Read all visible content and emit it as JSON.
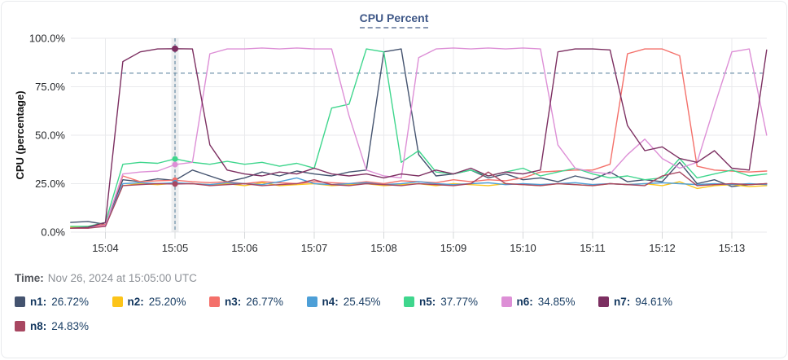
{
  "card": {
    "title": "CPU Percent",
    "time_label": "Time:",
    "time_value": "Nov 26, 2024 at 15:05:00 UTC"
  },
  "colors": {
    "grid": "#e9eaec",
    "tick_stub": "#d6d8da",
    "axis_text": "#27292c",
    "crosshair": "#4d7a96",
    "crosshair_band": "#cfd1d4",
    "title_text": "#3e5787"
  },
  "chart_data": {
    "type": "line",
    "title": "CPU Percent",
    "xlabel": "",
    "ylabel": "CPU (percentage)",
    "ylim": [
      0,
      100
    ],
    "grid": true,
    "legend_position": "bottom",
    "y_ticks": [
      {
        "value": 0,
        "label": "0.0%"
      },
      {
        "value": 25,
        "label": "25.0%"
      },
      {
        "value": 50,
        "label": "50.0%"
      },
      {
        "value": 75,
        "label": "75.0%"
      },
      {
        "value": 100,
        "label": "100.0%"
      }
    ],
    "x_ticks": [
      {
        "minute": 4,
        "label": "15:04"
      },
      {
        "minute": 5,
        "label": "15:05"
      },
      {
        "minute": 6,
        "label": "15:06"
      },
      {
        "minute": 7,
        "label": "15:07"
      },
      {
        "minute": 8,
        "label": "15:08"
      },
      {
        "minute": 9,
        "label": "15:09"
      },
      {
        "minute": 10,
        "label": "15:10"
      },
      {
        "minute": 11,
        "label": "15:11"
      },
      {
        "minute": 12,
        "label": "15:12"
      },
      {
        "minute": 13,
        "label": "15:13"
      }
    ],
    "threshold_percent": 82,
    "crosshair": {
      "minute": 5,
      "time_text": "Nov 26, 2024 at 15:05:00 UTC"
    },
    "sample_start_minute": 3.5,
    "sample_step_minute": 0.25,
    "series": [
      {
        "name": "n1",
        "color": "#44536f",
        "crosshair_label": "26.72%",
        "values": [
          5,
          5.5,
          4,
          27,
          26,
          27.5,
          26.72,
          32,
          29,
          26,
          28,
          31,
          29,
          31.5,
          30,
          29,
          31,
          32,
          93,
          94.5,
          40,
          29,
          30,
          32,
          28,
          30,
          27,
          28,
          26,
          29,
          27,
          31,
          26,
          27,
          26,
          36,
          25,
          27,
          23.5,
          24.5,
          25
        ]
      },
      {
        "name": "n2",
        "color": "#fcc419",
        "crosshair_label": "25.20%",
        "values": [
          2.5,
          3,
          3.5,
          24,
          25,
          24.5,
          25.2,
          25,
          24.5,
          25,
          24,
          25.5,
          24,
          24.5,
          25,
          24,
          24.5,
          25,
          24,
          24.5,
          25,
          24,
          25,
          24.5,
          24,
          25,
          24.5,
          24,
          25,
          24.5,
          24,
          25,
          24.5,
          25,
          24,
          26,
          22.5,
          24,
          24.5,
          23.5,
          24
        ]
      },
      {
        "name": "n3",
        "color": "#f4706a",
        "crosshair_label": "26.77%",
        "values": [
          2,
          2.5,
          4,
          29,
          26,
          26.5,
          26.77,
          26,
          25.5,
          26,
          25,
          26,
          25.5,
          25,
          26,
          25.5,
          25,
          26,
          25,
          26.5,
          26,
          25.5,
          27,
          26,
          27,
          26.5,
          28,
          31,
          31.5,
          32,
          32,
          35,
          92,
          94.5,
          94.5,
          91,
          34,
          32,
          31.5,
          31,
          31.5
        ]
      },
      {
        "name": "n4",
        "color": "#4d9fd7",
        "crosshair_label": "25.45%",
        "values": [
          2,
          2.5,
          3,
          25,
          25.5,
          25,
          25.45,
          25,
          24.5,
          25.5,
          25,
          24.5,
          26,
          28,
          25,
          24.5,
          25,
          25.5,
          24.5,
          25,
          26,
          25,
          24.5,
          25,
          25.5,
          24.5,
          25,
          24.5,
          25,
          25.5,
          24.5,
          25,
          24.5,
          25,
          25.5,
          25,
          24.5,
          25,
          24.5,
          25,
          24.5
        ]
      },
      {
        "name": "n5",
        "color": "#3fd68d",
        "crosshair_label": "37.77%",
        "values": [
          3,
          3,
          5,
          35,
          36,
          35.5,
          37.77,
          36,
          35,
          36.5,
          35,
          36,
          34,
          35.5,
          33,
          64,
          66,
          94.5,
          93,
          36,
          42,
          31,
          30,
          32,
          29,
          31,
          33,
          29,
          31,
          33,
          30,
          28,
          29,
          27,
          28,
          38,
          28,
          30,
          32,
          29,
          30
        ]
      },
      {
        "name": "n6",
        "color": "#dd8fd6",
        "crosshair_label": "34.85%",
        "values": [
          2,
          2,
          3.5,
          30,
          31,
          31.5,
          34.85,
          36,
          92,
          94.5,
          94.5,
          95,
          94.5,
          95,
          94.5,
          94.5,
          60,
          32,
          29,
          28,
          90,
          94.5,
          95,
          94.5,
          95,
          94.5,
          95,
          94.5,
          45,
          33,
          31,
          30,
          40,
          48,
          38,
          33,
          36,
          65,
          93,
          94.5,
          50
        ]
      },
      {
        "name": "n7",
        "color": "#7c2f61",
        "crosshair_label": "94.61%",
        "values": [
          2,
          2.5,
          5,
          88,
          93,
          94.5,
          94.61,
          94.5,
          45,
          32,
          30,
          29,
          31,
          30,
          33,
          30,
          29,
          30,
          28,
          30,
          29,
          32,
          30,
          33,
          29,
          31,
          30,
          32,
          93,
          94.5,
          94.5,
          94,
          55,
          42,
          44,
          38,
          36,
          42,
          33,
          32,
          94
        ]
      },
      {
        "name": "n8",
        "color": "#a84761",
        "crosshair_label": "24.83%",
        "values": [
          2,
          2,
          3,
          24,
          24.5,
          25,
          24.83,
          25,
          24,
          24.5,
          25,
          24,
          24.5,
          25,
          27,
          24.5,
          24,
          25,
          24.5,
          24,
          25,
          24.5,
          24,
          25,
          31,
          25,
          24.5,
          24,
          25,
          24.5,
          24,
          25,
          24.5,
          24,
          29,
          31,
          24,
          24.5,
          25,
          24.5,
          25
        ]
      }
    ]
  }
}
